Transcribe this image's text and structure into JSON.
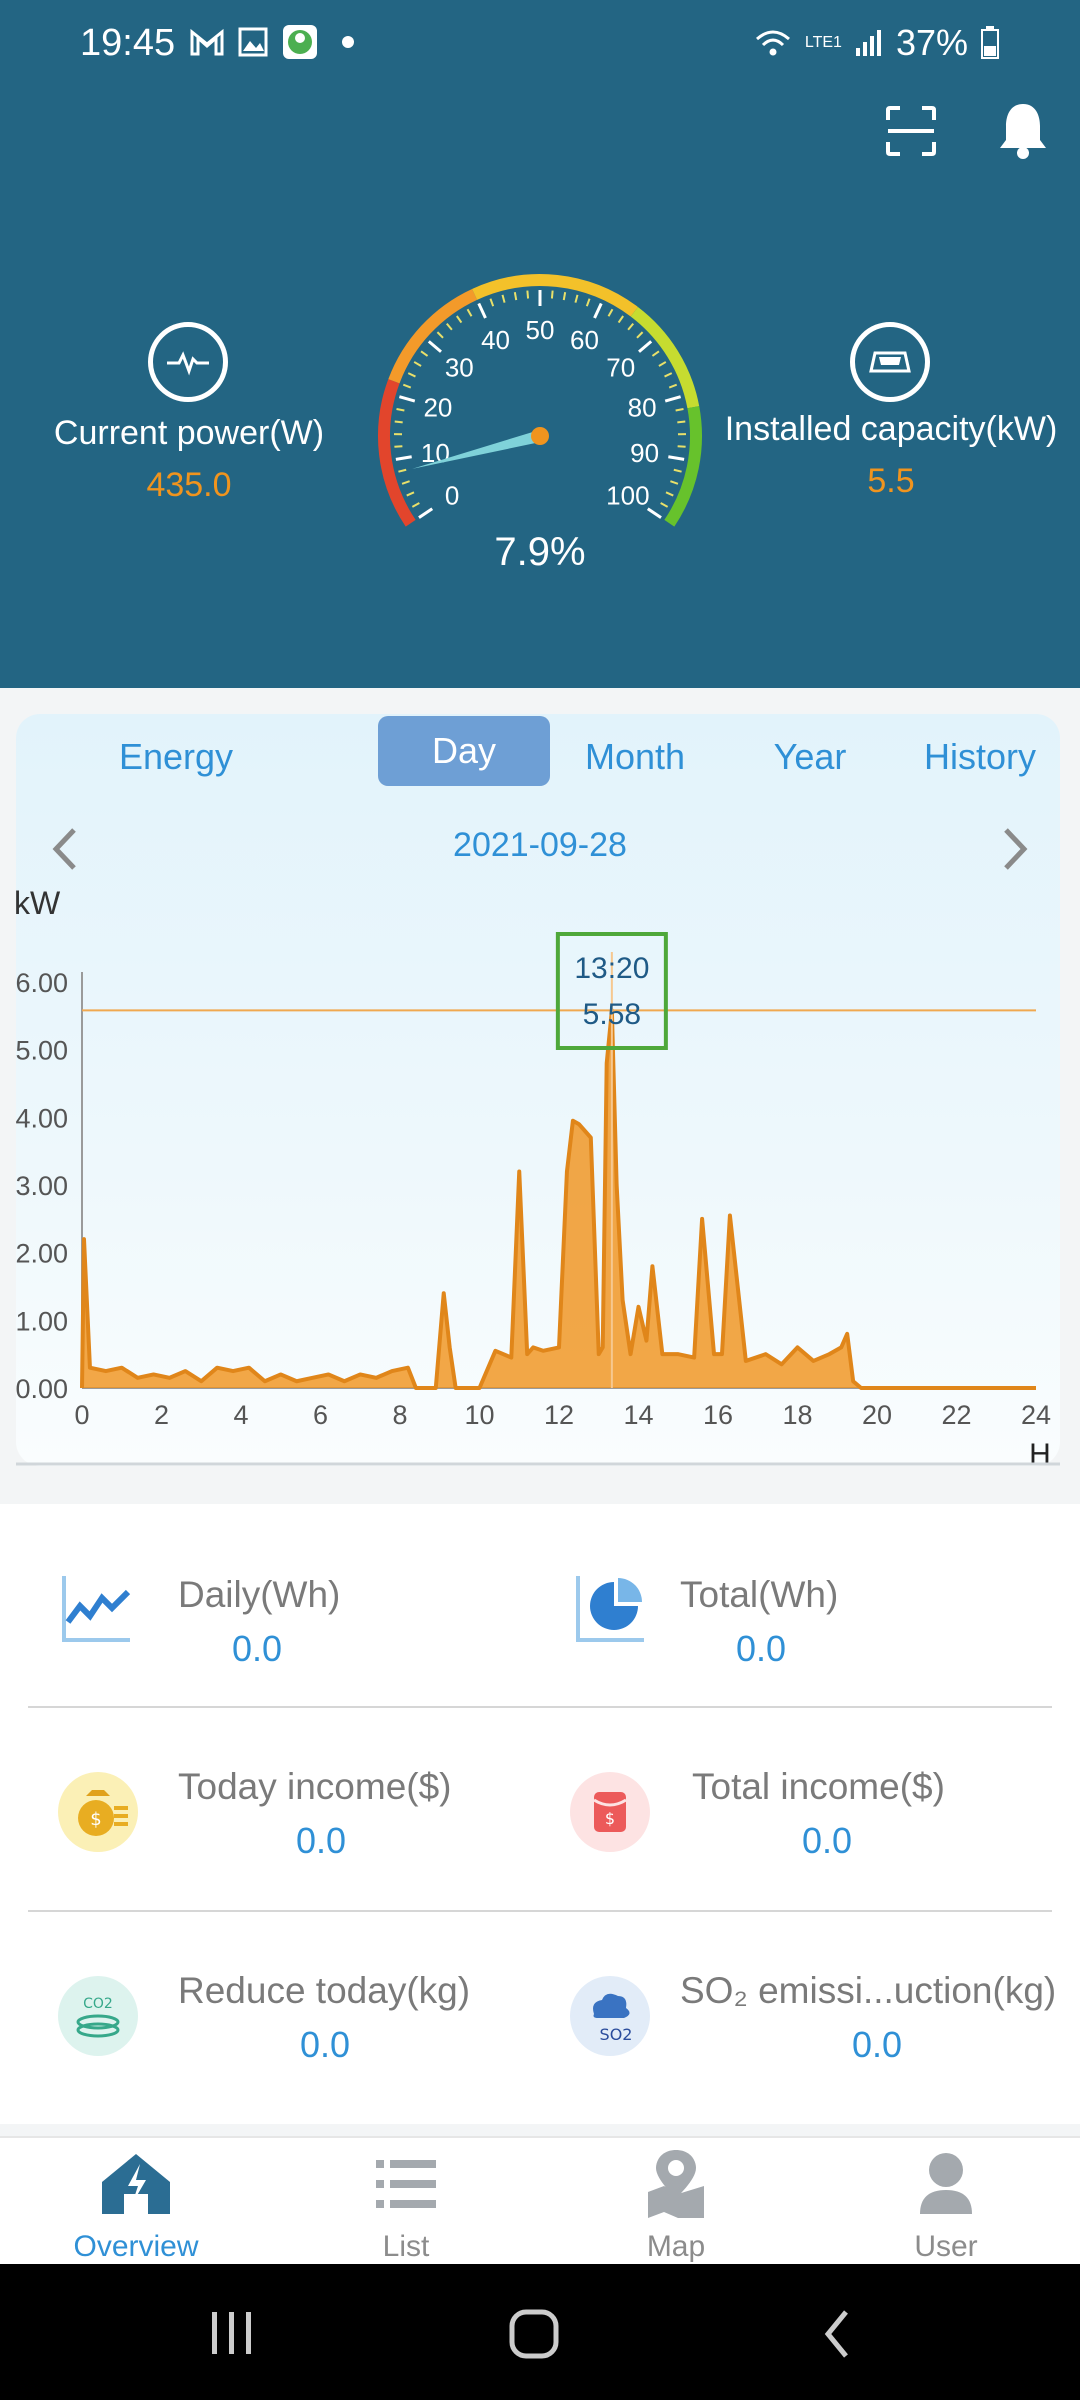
{
  "status_bar": {
    "time": "19:45",
    "battery": "37%",
    "network": "LTE1",
    "notif_icons": [
      "gmail-icon",
      "gallery-icon",
      "app-icon"
    ]
  },
  "header_actions": [
    "scan-icon",
    "bell-icon"
  ],
  "current_power": {
    "label": "Current power(W)",
    "value": "435.0"
  },
  "installed_capacity": {
    "label": "Installed capacity(kW)",
    "value": "5.5"
  },
  "gauge": {
    "value_text": "7.9%",
    "value": 7.9,
    "ticks": [
      "0",
      "10",
      "20",
      "30",
      "40",
      "50",
      "60",
      "70",
      "80",
      "90",
      "100"
    ],
    "colors": {
      "low": "#e2452c",
      "mid": "#f3c12a",
      "high": "#67c22c",
      "needle": "#7fd2d9",
      "hub": "#f0941e"
    }
  },
  "tabs": [
    {
      "label": "Energy",
      "active": false
    },
    {
      "label": "Day",
      "active": true
    },
    {
      "label": "Month",
      "active": false
    },
    {
      "label": "Year",
      "active": false
    },
    {
      "label": "History",
      "active": false
    }
  ],
  "date": "2021-09-28",
  "chart_data": {
    "type": "area",
    "ylabel": "kW",
    "xlabel": "H",
    "xlim": [
      0,
      24
    ],
    "ylim": [
      0,
      6
    ],
    "xticks": [
      "0",
      "2",
      "4",
      "6",
      "8",
      "10",
      "12",
      "14",
      "16",
      "18",
      "20",
      "22",
      "24"
    ],
    "yticks": [
      "0.00",
      "1.00",
      "2.00",
      "3.00",
      "4.00",
      "5.00",
      "6.00"
    ],
    "tooltip": {
      "time": "13:20",
      "value": "5.58",
      "x": 13.33,
      "y": 5.58
    },
    "series": [
      {
        "color": "#f0941e",
        "x": [
          0,
          0.05,
          0.2,
          0.6,
          1.0,
          1.4,
          1.8,
          2.2,
          2.6,
          3.0,
          3.4,
          3.8,
          4.2,
          4.6,
          5.0,
          5.4,
          5.8,
          6.2,
          6.6,
          7.0,
          7.4,
          7.8,
          8.2,
          8.4,
          8.9,
          9.1,
          9.25,
          9.4,
          9.7,
          10.0,
          10.4,
          10.8,
          11.0,
          11.2,
          11.35,
          11.6,
          12.0,
          12.2,
          12.35,
          12.5,
          12.8,
          13.0,
          13.1,
          13.2,
          13.33,
          13.45,
          13.6,
          13.8,
          14.0,
          14.2,
          14.35,
          14.6,
          15.0,
          15.4,
          15.6,
          15.9,
          16.1,
          16.3,
          16.7,
          17.2,
          17.6,
          18.0,
          18.4,
          18.8,
          19.1,
          19.25,
          19.4,
          19.6,
          19.8,
          22.0,
          24.0
        ],
        "values": [
          0.0,
          2.2,
          0.3,
          0.25,
          0.3,
          0.15,
          0.2,
          0.15,
          0.25,
          0.1,
          0.3,
          0.25,
          0.3,
          0.1,
          0.2,
          0.1,
          0.15,
          0.2,
          0.1,
          0.2,
          0.15,
          0.25,
          0.3,
          0.0,
          0.0,
          1.4,
          0.6,
          0.0,
          0.0,
          0.0,
          0.55,
          0.45,
          3.2,
          0.5,
          0.6,
          0.55,
          0.6,
          3.2,
          3.95,
          3.9,
          3.7,
          0.5,
          0.6,
          4.8,
          5.58,
          3.0,
          1.3,
          0.5,
          1.2,
          0.7,
          1.8,
          0.5,
          0.5,
          0.45,
          2.5,
          0.5,
          0.5,
          2.55,
          0.4,
          0.5,
          0.35,
          0.6,
          0.4,
          0.5,
          0.6,
          0.8,
          0.1,
          0.0,
          0.0,
          0.0,
          0.0
        ]
      }
    ]
  },
  "stats": {
    "daily": {
      "label": "Daily(Wh)",
      "value": "0.0"
    },
    "total": {
      "label": "Total(Wh)",
      "value": "0.0"
    },
    "today_income": {
      "label": "Today income($)",
      "value": "0.0"
    },
    "total_income": {
      "label": "Total income($)",
      "value": "0.0"
    },
    "reduce_today": {
      "label": "Reduce today(kg)",
      "value": "0.0"
    },
    "so2": {
      "label": "SO₂ emissi...uction(kg)",
      "value": "0.0"
    }
  },
  "nav": {
    "overview": "Overview",
    "list": "List",
    "map": "Map",
    "user": "User"
  }
}
